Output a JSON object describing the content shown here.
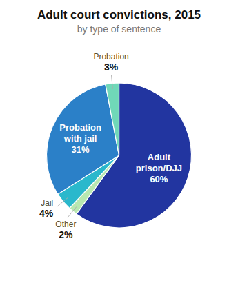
{
  "chart_data": {
    "type": "pie",
    "title": "Adult court convictions, 2015",
    "subtitle": "by type of sentence",
    "categories": [
      "Adult\nprison/DJJ",
      "Other",
      "Jail",
      "Probation\nwith jail",
      "Probation"
    ],
    "values": [
      60,
      2,
      4,
      31,
      3
    ],
    "value_labels": [
      "60%",
      "2%",
      "4%",
      "31%",
      "3%"
    ],
    "colors": [
      "#2235a0",
      "#b8e8b0",
      "#2ab8cc",
      "#2b80c8",
      "#70d8b8"
    ],
    "data_labels": true
  }
}
